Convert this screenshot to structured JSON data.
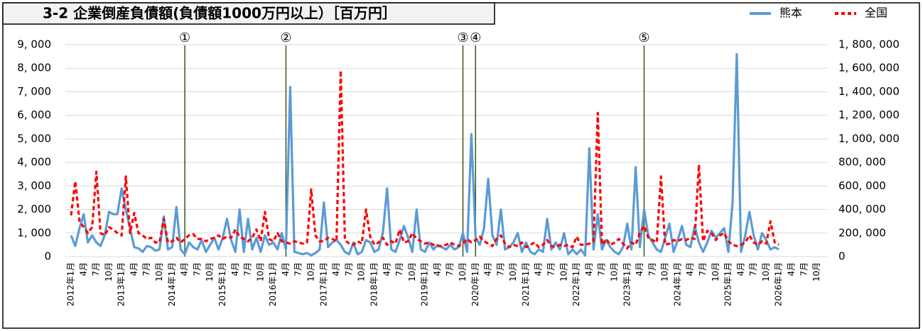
{
  "chart_data": {
    "type": "line",
    "title": "3-2 企業倒産負債額(負債額1000万円以上）［百万円］",
    "annotations": [
      "①",
      "②",
      "③",
      "④",
      "⑤"
    ],
    "ylim": [
      0,
      9000
    ],
    "yticks": [
      0,
      {
        "value": 1000,
        "label": "1, 000"
      },
      {
        "value": 2000,
        "label": "2, 000"
      },
      {
        "value": 3000,
        "label": "3, 000"
      },
      {
        "value": 4000,
        "label": "4, 000"
      },
      {
        "value": 5000,
        "label": "5, 000"
      },
      {
        "value": 6000,
        "label": "6, 000"
      },
      {
        "value": 7000,
        "label": "7, 000"
      },
      {
        "value": 8000,
        "label": "8, 000"
      },
      {
        "value": 9000,
        "label": "9, 000"
      }
    ],
    "y2lim": [
      0,
      1800000
    ],
    "y2ticks": [
      0,
      {
        "value": 200000,
        "label": "200, 000"
      },
      {
        "value": 400000,
        "label": "400, 000"
      },
      {
        "value": 600000,
        "label": "600, 000"
      },
      {
        "value": 800000,
        "label": "800, 000"
      },
      {
        "value": 1000000,
        "label": "1, 000, 000"
      },
      {
        "value": 1200000,
        "label": "1, 200, 000"
      },
      {
        "value": 1400000,
        "label": "1, 400, 000"
      },
      {
        "value": 1600000,
        "label": "1, 600, 000"
      },
      {
        "value": 1800000,
        "label": "1, 800, 000"
      }
    ],
    "grid": true,
    "categories": [
      "2012年1月",
      null,
      null,
      "4月",
      null,
      null,
      "7月",
      null,
      null,
      "10月",
      null,
      null,
      "2013年1月",
      null,
      null,
      "4月",
      null,
      null,
      "7月",
      null,
      null,
      "10月",
      null,
      null,
      "2014年1月",
      null,
      null,
      "4月",
      null,
      null,
      "7月",
      null,
      null,
      "10月",
      null,
      null,
      "2015年1月",
      null,
      null,
      "4月",
      null,
      null,
      "7月",
      null,
      null,
      "10月",
      null,
      null,
      "2016年1月",
      null,
      null,
      "4月",
      null,
      null,
      "7月",
      null,
      null,
      "10月",
      null,
      null,
      "2017年1月",
      null,
      null,
      "4月",
      null,
      null,
      "7月",
      null,
      null,
      "10月",
      null,
      null,
      "2018年1月",
      null,
      null,
      "4月",
      null,
      null,
      "7月",
      null,
      null,
      "10月",
      null,
      null,
      "2019年1月",
      null,
      null,
      "4月",
      null,
      null,
      "7月",
      null,
      null,
      "10月",
      null,
      null,
      "2020年1月",
      null,
      null,
      "4月",
      null,
      null,
      "7月",
      null,
      null,
      "10月",
      null,
      null,
      "2021年1月",
      null,
      null,
      "4月",
      null,
      null,
      "7月",
      null,
      null,
      "10月",
      null,
      null,
      "2022年1月",
      null,
      null,
      "4月",
      null,
      null,
      "7月",
      null,
      null,
      "10月",
      null,
      null,
      "2023年1月",
      null,
      null,
      "4月",
      null,
      null,
      "7月",
      null,
      null,
      "10月",
      null,
      null,
      "2024年1月",
      null,
      null,
      "4月",
      null,
      null,
      "7月",
      null,
      null,
      "10月",
      null,
      null,
      "2025年1月",
      null,
      null,
      "4月",
      null,
      null,
      "7月",
      null,
      null,
      "10月",
      null,
      null,
      "2026年1月",
      null,
      null,
      "4月",
      null,
      null,
      "7月",
      null,
      null,
      "10月",
      null,
      null
    ],
    "series": [
      {
        "name": "熊本",
        "color": "#5b9bd5",
        "dash": false,
        "values": [
          900,
          450,
          1200,
          1800,
          600,
          900,
          600,
          450,
          900,
          1900,
          1800,
          1800,
          2900,
          2000,
          1200,
          400,
          350,
          200,
          450,
          400,
          250,
          300,
          1700,
          300,
          400,
          2100,
          300,
          100,
          600,
          400,
          300,
          700,
          200,
          500,
          800,
          300,
          800,
          1600,
          700,
          200,
          2000,
          200,
          1600,
          300,
          800,
          200,
          900,
          500,
          600,
          300,
          1000,
          300,
          7200,
          200,
          150,
          100,
          150,
          50,
          150,
          300,
          2300,
          400,
          600,
          700,
          500,
          200,
          100,
          600,
          100,
          200,
          700,
          600,
          200,
          300,
          1000,
          2900,
          300,
          200,
          700,
          1300,
          800,
          200,
          2000,
          300,
          200,
          600,
          300,
          500,
          400,
          300,
          500,
          300,
          400,
          1000,
          200,
          5200,
          800,
          500,
          1200,
          3300,
          900,
          500,
          2000,
          300,
          400,
          600,
          1000,
          200,
          600,
          200,
          100,
          300,
          200,
          1600,
          300,
          600,
          300,
          1000,
          100,
          300,
          100,
          300,
          50,
          4600,
          300,
          1800,
          300,
          700,
          400,
          200,
          100,
          400,
          1400,
          300,
          3800,
          400,
          2000,
          900,
          600,
          300,
          200,
          800,
          1400,
          200,
          700,
          1300,
          500,
          400,
          1300,
          600,
          200,
          600,
          1100,
          800,
          1000,
          1200,
          200,
          2300,
          8600,
          200,
          900,
          1900,
          900,
          300,
          1000,
          700,
          300,
          400,
          300,
          null,
          null,
          null,
          null,
          null,
          null,
          null,
          null,
          null,
          null,
          null
        ]
      },
      {
        "name": "全国",
        "color": "#ff0000",
        "dash": true,
        "axis": "y2",
        "values": [
          350000,
          640000,
          300000,
          250000,
          200000,
          250000,
          720000,
          200000,
          180000,
          250000,
          230000,
          200000,
          180000,
          680000,
          200000,
          370000,
          200000,
          180000,
          150000,
          160000,
          120000,
          120000,
          320000,
          120000,
          130000,
          160000,
          120000,
          150000,
          180000,
          190000,
          150000,
          150000,
          130000,
          150000,
          160000,
          180000,
          150000,
          170000,
          160000,
          230000,
          170000,
          150000,
          130000,
          160000,
          230000,
          130000,
          380000,
          150000,
          130000,
          200000,
          130000,
          120000,
          110000,
          130000,
          120000,
          110000,
          120000,
          570000,
          180000,
          130000,
          130000,
          160000,
          150000,
          130000,
          1580000,
          140000,
          110000,
          100000,
          130000,
          110000,
          400000,
          170000,
          100000,
          120000,
          160000,
          100000,
          130000,
          110000,
          230000,
          120000,
          130000,
          200000,
          150000,
          130000,
          110000,
          120000,
          100000,
          90000,
          90000,
          100000,
          120000,
          100000,
          90000,
          110000,
          150000,
          120000,
          140000,
          170000,
          130000,
          110000,
          90000,
          150000,
          180000,
          110000,
          80000,
          100000,
          90000,
          120000,
          80000,
          100000,
          120000,
          80000,
          100000,
          140000,
          90000,
          80000,
          100000,
          90000,
          100000,
          80000,
          170000,
          100000,
          100000,
          110000,
          130000,
          1220000,
          100000,
          150000,
          100000,
          120000,
          150000,
          110000,
          70000,
          120000,
          100000,
          200000,
          260000,
          160000,
          140000,
          120000,
          680000,
          100000,
          110000,
          140000,
          130000,
          150000,
          140000,
          160000,
          150000,
          780000,
          130000,
          220000,
          200000,
          140000,
          180000,
          200000,
          130000,
          100000,
          90000,
          100000,
          120000,
          180000,
          120000,
          100000,
          130000,
          110000,
          300000,
          120000,
          100000,
          null,
          null,
          null,
          null,
          null,
          null,
          null,
          null,
          null,
          null,
          null
        ]
      }
    ]
  }
}
